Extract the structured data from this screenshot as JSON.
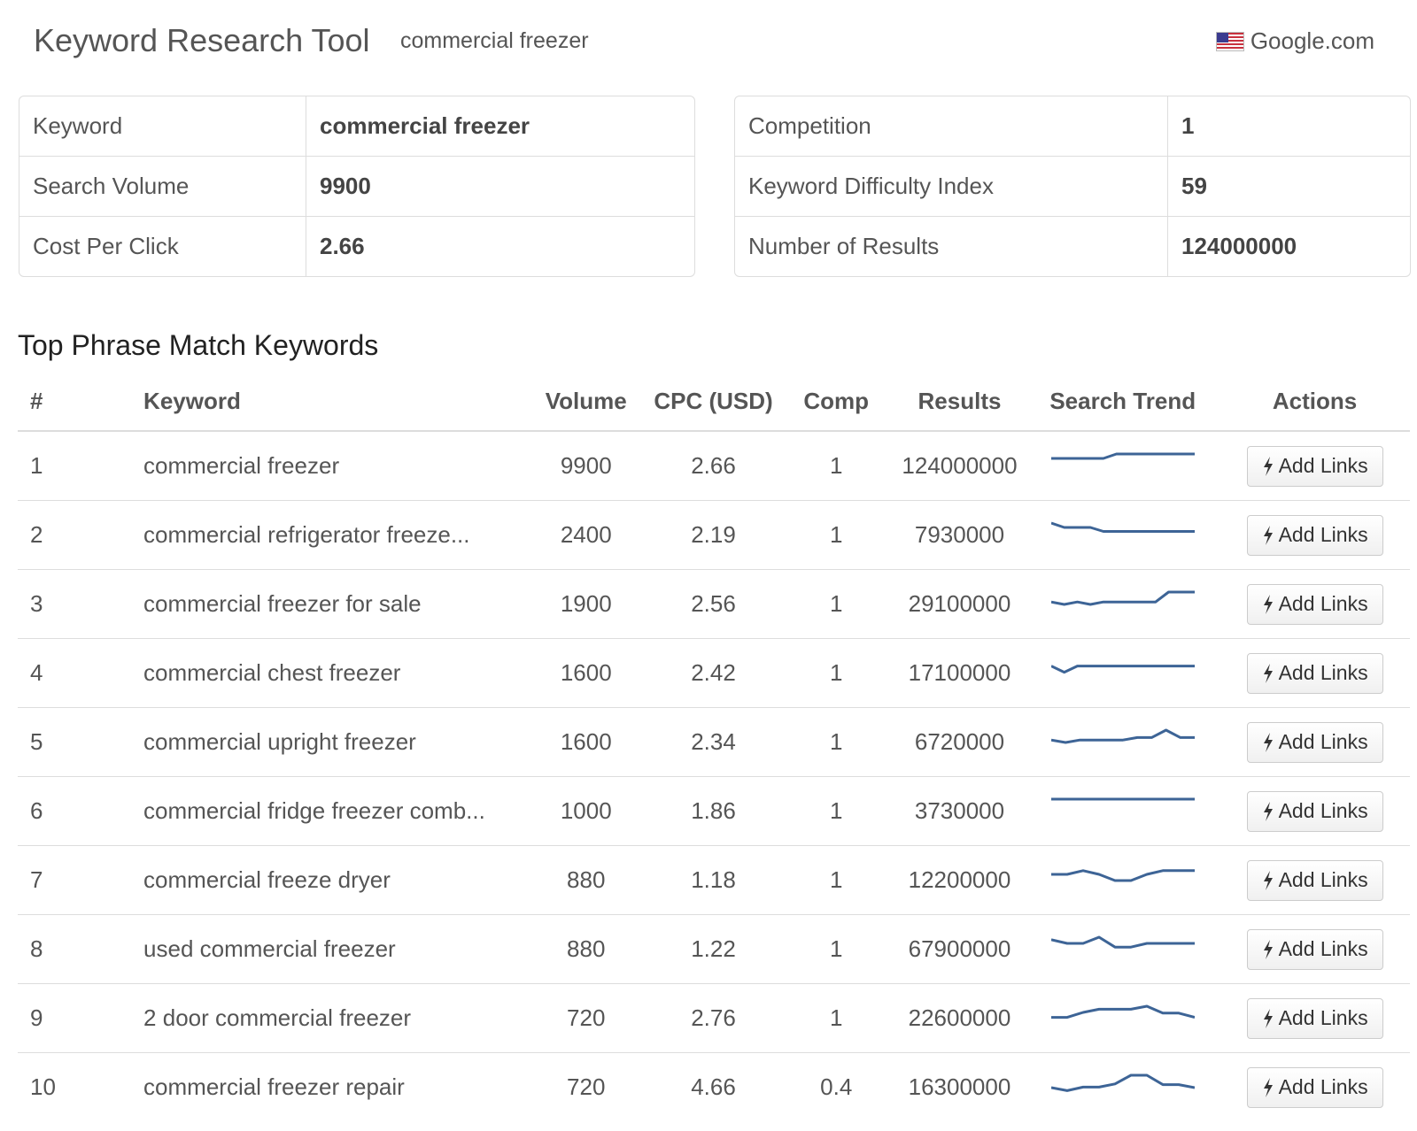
{
  "header": {
    "title": "Keyword Research Tool",
    "query": "commercial freezer",
    "engine": "Google.com",
    "engine_flag_icon": "us-flag-icon"
  },
  "summary_left": [
    {
      "label": "Keyword",
      "value": "commercial freezer"
    },
    {
      "label": "Search Volume",
      "value": "9900"
    },
    {
      "label": "Cost Per Click",
      "value": "2.66"
    }
  ],
  "summary_right": [
    {
      "label": "Competition",
      "value": "1"
    },
    {
      "label": "Keyword Difficulty Index",
      "value": "59"
    },
    {
      "label": "Number of Results",
      "value": "124000000"
    }
  ],
  "phrase_match": {
    "title": "Top Phrase Match Keywords",
    "columns": {
      "num": "#",
      "keyword": "Keyword",
      "volume": "Volume",
      "cpc": "CPC (USD)",
      "comp": "Comp",
      "results": "Results",
      "trend": "Search Trend",
      "actions": "Actions"
    },
    "action_label": "Add Links",
    "action_icon": "bolt-icon",
    "trend_color": "#3d6496",
    "rows": [
      {
        "num": "1",
        "keyword": "commercial freezer",
        "volume": "9900",
        "cpc": "2.66",
        "comp": "1",
        "results": "124000000",
        "trend": [
          0.82,
          0.82,
          0.82,
          0.82,
          0.82,
          1,
          1,
          1,
          1,
          1,
          1,
          1
        ]
      },
      {
        "num": "2",
        "keyword": "commercial refrigerator freeze...",
        "volume": "2400",
        "cpc": "2.19",
        "comp": "1",
        "results": "7930000",
        "trend": [
          1,
          0.82,
          0.82,
          0.82,
          0.66,
          0.66,
          0.66,
          0.66,
          0.66,
          0.66,
          0.66,
          0.66
        ]
      },
      {
        "num": "3",
        "keyword": "commercial freezer for sale",
        "volume": "1900",
        "cpc": "2.56",
        "comp": "1",
        "results": "29100000",
        "trend": [
          0.6,
          0.5,
          0.6,
          0.5,
          0.6,
          0.6,
          0.6,
          0.6,
          0.6,
          1,
          1,
          1
        ]
      },
      {
        "num": "4",
        "keyword": "commercial chest freezer",
        "volume": "1600",
        "cpc": "2.42",
        "comp": "1",
        "results": "17100000",
        "trend": [
          0.8,
          0.55,
          0.8,
          0.8,
          0.8,
          0.8,
          0.8,
          0.8,
          0.8,
          0.8,
          0.8,
          0.8
        ]
      },
      {
        "num": "5",
        "keyword": "commercial upright freezer",
        "volume": "1600",
        "cpc": "2.34",
        "comp": "1",
        "results": "6720000",
        "trend": [
          0.6,
          0.5,
          0.6,
          0.6,
          0.6,
          0.6,
          0.7,
          0.7,
          1,
          0.7,
          0.7
        ]
      },
      {
        "num": "6",
        "keyword": "commercial fridge freezer comb...",
        "volume": "1000",
        "cpc": "1.86",
        "comp": "1",
        "results": "3730000",
        "trend": [
          1,
          1,
          1,
          1,
          1,
          1,
          1,
          1,
          1,
          1,
          1,
          1
        ]
      },
      {
        "num": "7",
        "keyword": "commercial freeze dryer",
        "volume": "880",
        "cpc": "1.18",
        "comp": "1",
        "results": "12200000",
        "trend": [
          0.75,
          0.75,
          0.9,
          0.75,
          0.5,
          0.5,
          0.75,
          0.9,
          0.9,
          0.9
        ]
      },
      {
        "num": "8",
        "keyword": "used commercial freezer",
        "volume": "880",
        "cpc": "1.22",
        "comp": "1",
        "results": "67900000",
        "trend": [
          0.9,
          0.75,
          0.75,
          1,
          0.6,
          0.6,
          0.75,
          0.75,
          0.75,
          0.75
        ]
      },
      {
        "num": "9",
        "keyword": "2 door commercial freezer",
        "volume": "720",
        "cpc": "2.76",
        "comp": "1",
        "results": "22600000",
        "trend": [
          0.55,
          0.55,
          0.75,
          0.88,
          0.88,
          0.88,
          1,
          0.72,
          0.72,
          0.55
        ]
      },
      {
        "num": "10",
        "keyword": "commercial freezer repair",
        "volume": "720",
        "cpc": "4.66",
        "comp": "0.4",
        "results": "16300000",
        "trend": [
          0.5,
          0.38,
          0.52,
          0.52,
          0.65,
          1,
          1,
          0.62,
          0.62,
          0.5
        ]
      }
    ]
  }
}
